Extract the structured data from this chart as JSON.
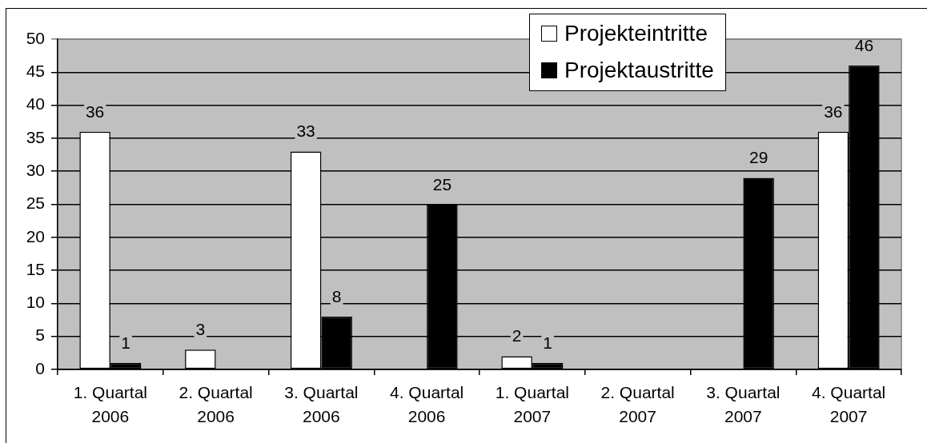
{
  "chart_data": {
    "type": "bar",
    "categories": [
      "1. Quartal 2006",
      "2. Quartal 2006",
      "3. Quartal 2006",
      "4. Quartal 2006",
      "1. Quartal 2007",
      "2. Quartal 2007",
      "3. Quartal 2007",
      "4. Quartal 2007"
    ],
    "series": [
      {
        "name": "Projekteintritte",
        "color": "#ffffff",
        "values": [
          36,
          3,
          33,
          null,
          2,
          null,
          null,
          36
        ]
      },
      {
        "name": "Projektaustritte",
        "color": "#000000",
        "values": [
          1,
          null,
          8,
          25,
          1,
          null,
          29,
          46
        ]
      }
    ],
    "ylim": [
      0,
      50
    ],
    "yticks": [
      0,
      5,
      10,
      15,
      20,
      25,
      30,
      35,
      40,
      45,
      50
    ],
    "grid": "y",
    "legend": "top right",
    "data_labels": true
  }
}
